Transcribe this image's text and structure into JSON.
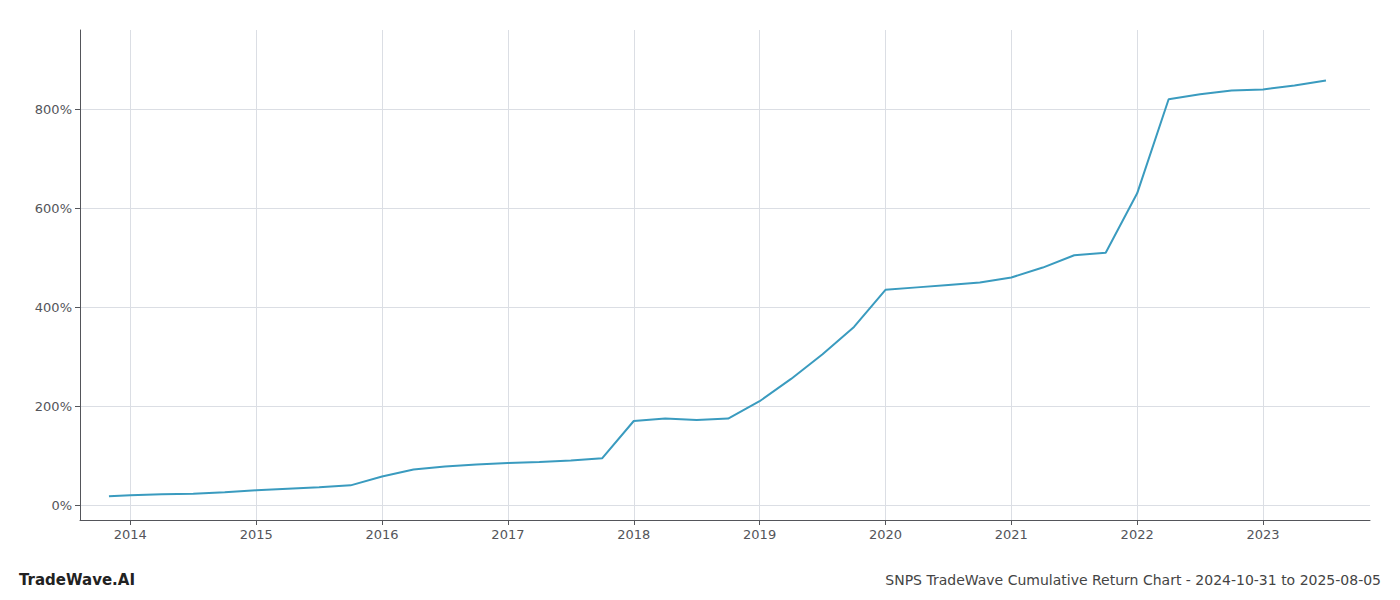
{
  "chart_data": {
    "type": "line",
    "title": "SNPS TradeWave Cumulative Return Chart - 2024-10-31 to 2025-08-05",
    "annotations": [
      "TradeWave.AI"
    ],
    "color": "#3a9bbf",
    "grid": true,
    "x": [
      2013.83,
      2014.0,
      2014.25,
      2014.5,
      2014.75,
      2015.0,
      2015.25,
      2015.5,
      2015.75,
      2016.0,
      2016.25,
      2016.5,
      2016.75,
      2017.0,
      2017.25,
      2017.5,
      2017.75,
      2018.0,
      2018.25,
      2018.5,
      2018.75,
      2019.0,
      2019.25,
      2019.5,
      2019.75,
      2020.0,
      2020.25,
      2020.5,
      2020.75,
      2021.0,
      2021.25,
      2021.5,
      2021.75,
      2022.0,
      2022.25,
      2022.5,
      2022.75,
      2023.0,
      2023.25,
      2023.5
    ],
    "values": [
      18,
      20,
      22,
      23,
      26,
      30,
      33,
      36,
      40,
      58,
      72,
      78,
      82,
      85,
      87,
      90,
      95,
      170,
      175,
      172,
      175,
      210,
      255,
      305,
      360,
      435,
      440,
      445,
      450,
      460,
      480,
      505,
      510,
      630,
      820,
      830,
      838,
      840,
      848,
      858
    ],
    "xlim": [
      2013.6,
      2023.85
    ],
    "xticks": [
      2014,
      2015,
      2016,
      2017,
      2018,
      2019,
      2020,
      2021,
      2022,
      2023
    ],
    "ylim": [
      -30,
      960
    ],
    "yticks": [
      {
        "value": 0,
        "label": "0%"
      },
      {
        "value": 200,
        "label": "200%"
      },
      {
        "value": 400,
        "label": "400%"
      },
      {
        "value": 600,
        "label": "600%"
      },
      {
        "value": 800,
        "label": "800%"
      }
    ]
  }
}
